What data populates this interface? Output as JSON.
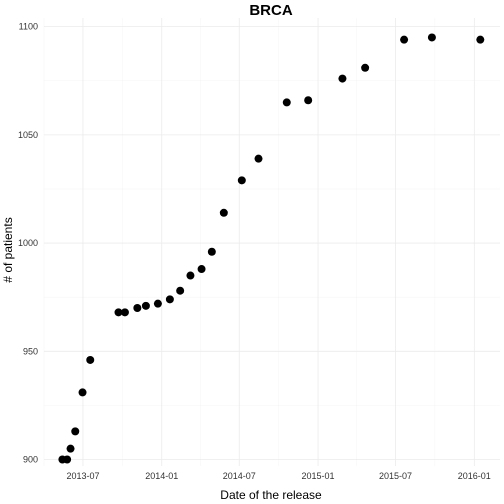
{
  "chart_data": {
    "type": "scatter",
    "title": "BRCA",
    "xlabel": "Date of the release",
    "ylabel": "# of patients",
    "x_type": "date",
    "xlim": [
      "2013-04-01",
      "2016-03-01"
    ],
    "ylim": [
      897,
      1104
    ],
    "x_ticks": [
      {
        "value": "2013-07-01",
        "label": "2013-07"
      },
      {
        "value": "2014-01-01",
        "label": "2014-01"
      },
      {
        "value": "2014-07-01",
        "label": "2014-07"
      },
      {
        "value": "2015-01-01",
        "label": "2015-01"
      },
      {
        "value": "2015-07-01",
        "label": "2015-07"
      },
      {
        "value": "2016-01-01",
        "label": "2016-01"
      }
    ],
    "x_minor_ticks": [
      "2013-04-01",
      "2013-10-01",
      "2014-04-01",
      "2014-10-01",
      "2015-04-01",
      "2015-10-01",
      "2016-04-01"
    ],
    "y_ticks": [
      900,
      950,
      1000,
      1050,
      1100
    ],
    "grid": true,
    "legend": false,
    "point_color": "#000000",
    "points": [
      {
        "x": "2013-05-14",
        "y": 900
      },
      {
        "x": "2013-05-25",
        "y": 900
      },
      {
        "x": "2013-06-02",
        "y": 905
      },
      {
        "x": "2013-06-13",
        "y": 913
      },
      {
        "x": "2013-06-30",
        "y": 931
      },
      {
        "x": "2013-07-18",
        "y": 946
      },
      {
        "x": "2013-09-22",
        "y": 968
      },
      {
        "x": "2013-10-07",
        "y": 968
      },
      {
        "x": "2013-11-05",
        "y": 970
      },
      {
        "x": "2013-11-25",
        "y": 971
      },
      {
        "x": "2013-12-23",
        "y": 972
      },
      {
        "x": "2014-01-20",
        "y": 974
      },
      {
        "x": "2014-02-13",
        "y": 978
      },
      {
        "x": "2014-03-09",
        "y": 985
      },
      {
        "x": "2014-04-04",
        "y": 988
      },
      {
        "x": "2014-04-28",
        "y": 996
      },
      {
        "x": "2014-05-26",
        "y": 1014
      },
      {
        "x": "2014-07-07",
        "y": 1029
      },
      {
        "x": "2014-08-15",
        "y": 1039
      },
      {
        "x": "2014-10-20",
        "y": 1065
      },
      {
        "x": "2014-12-09",
        "y": 1066
      },
      {
        "x": "2015-02-27",
        "y": 1076
      },
      {
        "x": "2015-04-21",
        "y": 1081
      },
      {
        "x": "2015-07-21",
        "y": 1094
      },
      {
        "x": "2015-09-24",
        "y": 1095
      },
      {
        "x": "2016-01-15",
        "y": 1094
      }
    ]
  }
}
